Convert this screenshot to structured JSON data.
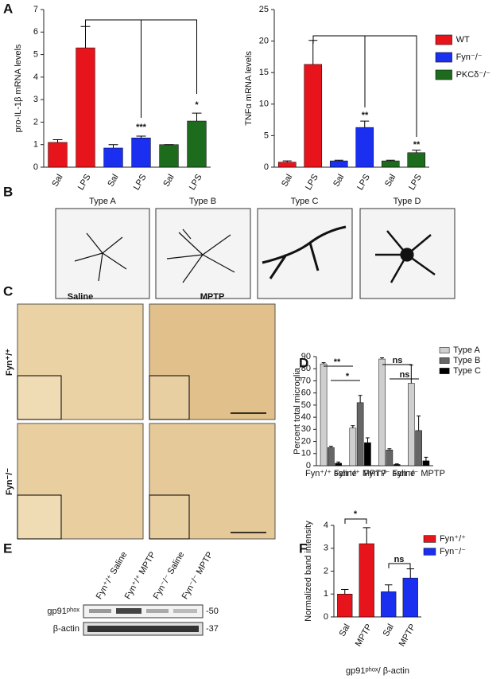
{
  "panel_letters": [
    "A",
    "B",
    "C",
    "D",
    "E",
    "F"
  ],
  "chart_data": [
    {
      "type": "bar",
      "y_label": "pro-IL-1β mRNA levels",
      "categories": [
        "Sal",
        "LPS",
        "Sal",
        "LPS",
        "Sal",
        "LPS"
      ],
      "values": [
        1.1,
        5.3,
        0.85,
        1.3,
        1.0,
        2.05
      ],
      "errors": [
        0.12,
        0.95,
        0.15,
        0.08,
        0,
        0.35
      ],
      "colors": [
        "#e8141b",
        "#e8141b",
        "#1a2ff0",
        "#1a2ff0",
        "#1d6b1d",
        "#1d6b1d"
      ],
      "ylim": [
        0,
        7
      ],
      "yticks": [
        0,
        1,
        2,
        3,
        4,
        5,
        6,
        7
      ],
      "annotations": [
        "***",
        "*"
      ]
    },
    {
      "type": "bar",
      "y_label": "TNFα mRNA levels",
      "categories": [
        "Sal",
        "LPS",
        "Sal",
        "LPS",
        "Sal",
        "LPS"
      ],
      "values": [
        0.8,
        16.3,
        1.0,
        6.3,
        1.0,
        2.3
      ],
      "errors": [
        0.2,
        3.8,
        0.1,
        1.0,
        0.1,
        0.4
      ],
      "colors": [
        "#e8141b",
        "#e8141b",
        "#1a2ff0",
        "#1a2ff0",
        "#1d6b1d",
        "#1d6b1d"
      ],
      "ylim": [
        0,
        25
      ],
      "yticks": [
        0,
        5,
        10,
        15,
        20,
        25
      ],
      "annotations": [
        "**",
        "**"
      ],
      "legend": [
        {
          "name": "WT",
          "color": "#e8141b"
        },
        {
          "name": "Fyn⁻/⁻",
          "color": "#1a2ff0"
        },
        {
          "name": "PKCδ⁻/⁻",
          "color": "#1d6b1d"
        }
      ]
    },
    {
      "type": "grouped_bar",
      "y_label": "Percent total microglia",
      "categories": [
        "Fyn⁺/⁺ saline",
        "Fyn⁺/⁺ MPTP",
        "Fyn⁻/⁻ saline",
        "Fyn⁻/⁻ MPTP"
      ],
      "series": [
        {
          "name": "Type A",
          "color": "#cfcfcf",
          "values": [
            84,
            31,
            88,
            68
          ],
          "errors": [
            1,
            2,
            1,
            15
          ]
        },
        {
          "name": "Type B",
          "color": "#666666",
          "values": [
            15,
            52,
            13,
            29
          ],
          "errors": [
            1,
            6,
            1,
            12
          ]
        },
        {
          "name": "Type C",
          "color": "#000000",
          "values": [
            2,
            19,
            1,
            4
          ],
          "errors": [
            1,
            4,
            0.5,
            3
          ]
        }
      ],
      "ylim": [
        0,
        90
      ],
      "yticks": [
        0,
        10,
        20,
        30,
        40,
        50,
        60,
        70,
        80,
        90
      ],
      "annotations": [
        "**",
        "*",
        "ns",
        "ns"
      ]
    },
    {
      "type": "bar",
      "y_label": "Normalized band intensity",
      "x_label": "gp91ᵖʰᵒˣ/ β-actin",
      "categories": [
        "Sal",
        "MPTP",
        "Sal",
        "MPTP"
      ],
      "values": [
        1.0,
        3.2,
        1.1,
        1.7
      ],
      "errors": [
        0.2,
        0.7,
        0.3,
        0.4
      ],
      "colors": [
        "#e8141b",
        "#e8141b",
        "#1a2ff0",
        "#1a2ff0"
      ],
      "ylim": [
        0,
        4
      ],
      "yticks": [
        0,
        1,
        2,
        3,
        4
      ],
      "annotations": [
        "*",
        "ns"
      ],
      "legend": [
        {
          "name": "Fyn⁺/⁺",
          "color": "#e8141b"
        },
        {
          "name": "Fyn⁻/⁻",
          "color": "#1a2ff0"
        }
      ]
    }
  ],
  "microglia_types": [
    "Type A",
    "Type B",
    "Type C",
    "Type D"
  ],
  "ihc": {
    "columns": [
      "Saline",
      "MPTP"
    ],
    "rows": [
      "Fyn⁺/⁺",
      "Fyn⁻/⁻"
    ]
  },
  "blot": {
    "lanes": [
      "Fyn⁺/⁺ Saline",
      "Fyn⁺/⁺ MPTP",
      "Fyn⁻/⁻ Saline",
      "Fyn⁻/⁻ MPTP"
    ],
    "bands": [
      "gp91ᵖʰᵒˣ",
      "β-actin"
    ],
    "markers": [
      "-50",
      "-37"
    ]
  }
}
